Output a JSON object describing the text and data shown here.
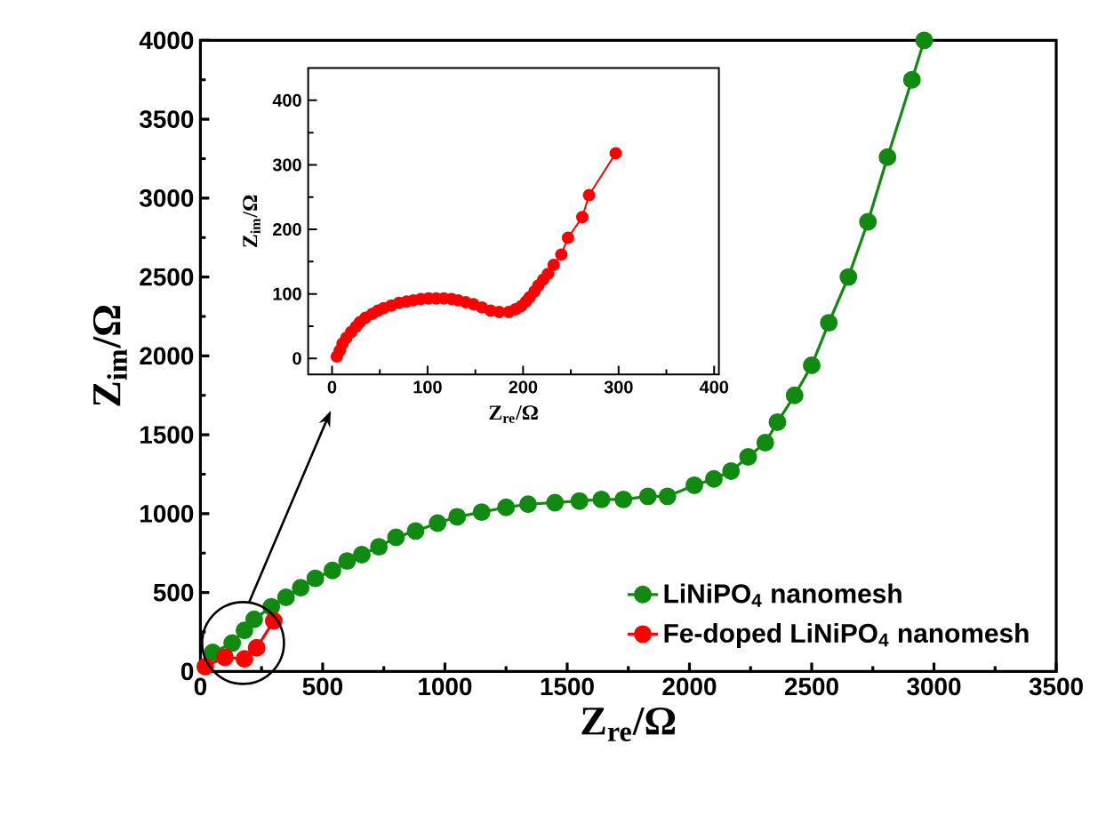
{
  "chart_data": [
    {
      "type": "line",
      "xlabel": "Z$_{re}$/Ω",
      "ylabel": "Z$_{im}$/Ω",
      "xlim": [
        0,
        3500
      ],
      "ylim": [
        0,
        4000
      ],
      "xticks": [
        0,
        500,
        1000,
        1500,
        2000,
        2500,
        3000,
        3500
      ],
      "yticks": [
        0,
        500,
        1000,
        1500,
        2000,
        2500,
        3000,
        3500,
        4000
      ],
      "legend": "bottom right",
      "marker": "circle",
      "line_style": "solid",
      "series": [
        {
          "name": "LiNiPO$_{4}$ nanomesh",
          "color": "#108a10",
          "x": [
            50,
            130,
            180,
            220,
            290,
            350,
            410,
            470,
            540,
            600,
            660,
            730,
            800,
            880,
            970,
            1050,
            1150,
            1250,
            1340,
            1450,
            1550,
            1640,
            1730,
            1830,
            1910,
            2020,
            2100,
            2170,
            2240,
            2310,
            2360,
            2430,
            2500,
            2570,
            2650,
            2730,
            2810,
            2910,
            2960
          ],
          "values": [
            120,
            180,
            260,
            330,
            410,
            470,
            530,
            590,
            640,
            700,
            740,
            790,
            850,
            890,
            940,
            980,
            1010,
            1040,
            1060,
            1070,
            1080,
            1090,
            1090,
            1110,
            1110,
            1180,
            1220,
            1270,
            1360,
            1450,
            1580,
            1750,
            1940,
            2210,
            2500,
            2850,
            3260,
            3750,
            4000
          ]
        },
        {
          "name": "Fe-doped LiNiPO$_{4}$ nanomesh",
          "color": "#ff0000",
          "x": [
            20,
            100,
            180,
            230,
            300
          ],
          "values": [
            30,
            90,
            80,
            150,
            320
          ]
        }
      ]
    },
    {
      "type": "line",
      "xlabel": "Z$_{re}$/Ω",
      "ylabel": "Z$_{im}$/Ω",
      "xlim": [
        -25,
        405
      ],
      "ylim": [
        -25,
        450
      ],
      "xticks": [
        0,
        100,
        200,
        300,
        400
      ],
      "yticks": [
        0,
        100,
        200,
        300,
        400
      ],
      "marker": "circle",
      "line_style": "solid",
      "series": [
        {
          "color": "#ff0000",
          "x": [
            5,
            8,
            11,
            15,
            20,
            25,
            29,
            35,
            42,
            48,
            54,
            62,
            70,
            78,
            85,
            93,
            101,
            109,
            117,
            125,
            132,
            140,
            148,
            157,
            166,
            175,
            185,
            192,
            198,
            203,
            207,
            212,
            216,
            221,
            226,
            232,
            240,
            247,
            262,
            269,
            297
          ],
          "values": [
            3,
            12,
            23,
            32,
            41,
            49,
            56,
            63,
            69,
            74,
            78,
            82,
            86,
            88,
            90,
            92,
            93,
            93,
            93,
            92,
            90,
            87,
            84,
            79,
            74,
            72,
            72,
            76,
            81,
            88,
            95,
            104,
            113,
            122,
            131,
            145,
            161,
            187,
            219,
            253,
            318
          ]
        }
      ]
    }
  ]
}
